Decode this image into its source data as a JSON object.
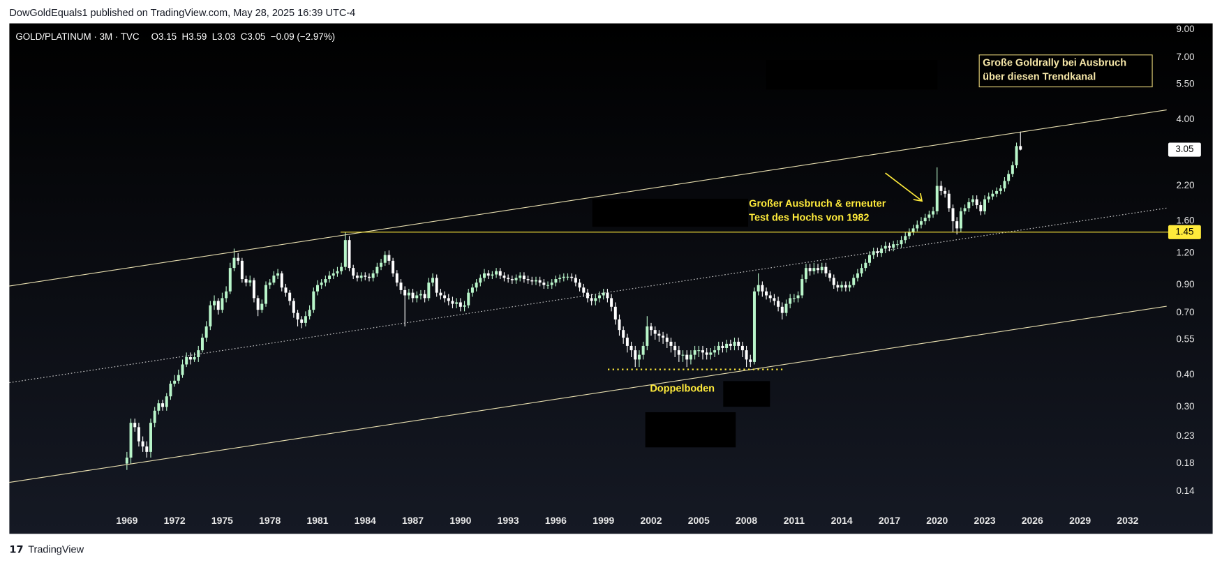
{
  "header": {
    "publisher": "DowGoldEquals1 published on TradingView.com, May 28, 2025 16:39 UTC-4"
  },
  "footer": {
    "brand": "TradingView"
  },
  "chart_data": {
    "type": "candlestick",
    "title": "GOLD/PLATINUM · 3M · TVC",
    "ohlc_text": "O3.15  H3.59  L3.03  C3.05  −0.09 (−2.97%)",
    "log_scale": true,
    "up_color": "#b9f6ca",
    "down_color": "#ffffff",
    "level": 1.45,
    "level_color": "#ffeb3b",
    "annotations": [
      {
        "lines": [
          "Große Goldrally bei Ausbruch",
          "über diesen Trendkanal"
        ]
      },
      {
        "lines": [
          "Großer Ausbruch & erneuter",
          "Test des Hochs von 1982"
        ]
      },
      {
        "lines": [
          "Doppelboden"
        ]
      }
    ],
    "xlim": [
      1961.6,
      2034.6
    ],
    "xticks": [
      1969,
      1972,
      1975,
      1978,
      1981,
      1984,
      1987,
      1990,
      1993,
      1996,
      1999,
      2002,
      2005,
      2008,
      2011,
      2014,
      2017,
      2020,
      2023,
      2026,
      2029,
      2032
    ],
    "ylim": [
      0.118,
      9.52
    ],
    "yticks": [
      {
        "value": 9,
        "label": "9.00"
      },
      {
        "value": 7,
        "label": "7.00"
      },
      {
        "value": 5.5,
        "label": "5.50"
      },
      {
        "value": 4,
        "label": "4.00"
      },
      {
        "value": 2.2,
        "label": "2.20"
      },
      {
        "value": 1.6,
        "label": "1.60"
      },
      {
        "value": 1.2,
        "label": "1.20"
      },
      {
        "value": 0.9,
        "label": "0.90"
      },
      {
        "value": 0.7,
        "label": "0.70"
      },
      0.55,
      {
        "value": 0.4,
        "label": "0.40"
      },
      {
        "value": 0.3,
        "label": "0.30"
      },
      0.23,
      0.18,
      0.14
    ],
    "x": [
      1969,
      1969.25,
      1969.5,
      1969.75,
      1970,
      1970.25,
      1970.5,
      1970.75,
      1971,
      1971.25,
      1971.5,
      1971.75,
      1972,
      1972.25,
      1972.5,
      1972.75,
      1973,
      1973.25,
      1973.5,
      1973.75,
      1974,
      1974.25,
      1974.5,
      1974.75,
      1975,
      1975.25,
      1975.5,
      1975.75,
      1976,
      1976.25,
      1976.5,
      1976.75,
      1977,
      1977.25,
      1977.5,
      1977.75,
      1978,
      1978.25,
      1978.5,
      1978.75,
      1979,
      1979.25,
      1979.5,
      1979.75,
      1980,
      1980.25,
      1980.5,
      1980.75,
      1981,
      1981.25,
      1981.5,
      1981.75,
      1982,
      1982.25,
      1982.5,
      1982.75,
      1983,
      1983.25,
      1983.5,
      1983.75,
      1984,
      1984.25,
      1984.5,
      1984.75,
      1985,
      1985.25,
      1985.5,
      1985.75,
      1986,
      1986.25,
      1986.5,
      1986.75,
      1987,
      1987.25,
      1987.5,
      1987.75,
      1988,
      1988.25,
      1988.5,
      1988.75,
      1989,
      1989.25,
      1989.5,
      1989.75,
      1990,
      1990.25,
      1990.5,
      1990.75,
      1991,
      1991.25,
      1991.5,
      1991.75,
      1992,
      1992.25,
      1992.5,
      1992.75,
      1993,
      1993.25,
      1993.5,
      1993.75,
      1994,
      1994.25,
      1994.5,
      1994.75,
      1995,
      1995.25,
      1995.5,
      1995.75,
      1996,
      1996.25,
      1996.5,
      1996.75,
      1997,
      1997.25,
      1997.5,
      1997.75,
      1998,
      1998.25,
      1998.5,
      1998.75,
      1999,
      1999.25,
      1999.5,
      1999.75,
      2000,
      2000.25,
      2000.5,
      2000.75,
      2001,
      2001.25,
      2001.5,
      2001.75,
      2002,
      2002.25,
      2002.5,
      2002.75,
      2003,
      2003.25,
      2003.5,
      2003.75,
      2004,
      2004.25,
      2004.5,
      2004.75,
      2005,
      2005.25,
      2005.5,
      2005.75,
      2006,
      2006.25,
      2006.5,
      2006.75,
      2007,
      2007.25,
      2007.5,
      2007.75,
      2008,
      2008.25,
      2008.5,
      2008.75,
      2009,
      2009.25,
      2009.5,
      2009.75,
      2010,
      2010.25,
      2010.5,
      2010.75,
      2011,
      2011.25,
      2011.5,
      2011.75,
      2012,
      2012.25,
      2012.5,
      2012.75,
      2013,
      2013.25,
      2013.5,
      2013.75,
      2014,
      2014.25,
      2014.5,
      2014.75,
      2015,
      2015.25,
      2015.5,
      2015.75,
      2016,
      2016.25,
      2016.5,
      2016.75,
      2017,
      2017.25,
      2017.5,
      2017.75,
      2018,
      2018.25,
      2018.5,
      2018.75,
      2019,
      2019.25,
      2019.5,
      2019.75,
      2020,
      2020.25,
      2020.5,
      2020.75,
      2021,
      2021.25,
      2021.5,
      2021.75,
      2022,
      2022.25,
      2022.5,
      2022.75,
      2023,
      2023.25,
      2023.5,
      2023.75,
      2024,
      2024.25,
      2024.5,
      2024.75,
      2025,
      2025.25
    ],
    "open": [
      0.18,
      0.19,
      0.26,
      0.25,
      0.22,
      0.21,
      0.2,
      0.26,
      0.29,
      0.31,
      0.3,
      0.33,
      0.37,
      0.38,
      0.4,
      0.44,
      0.47,
      0.46,
      0.47,
      0.5,
      0.56,
      0.62,
      0.75,
      0.78,
      0.72,
      0.8,
      0.85,
      1.05,
      1.15,
      1.12,
      0.95,
      0.92,
      0.94,
      0.8,
      0.72,
      0.76,
      0.9,
      0.92,
      0.98,
      1.0,
      0.88,
      0.84,
      0.78,
      0.7,
      0.66,
      0.64,
      0.68,
      0.72,
      0.85,
      0.9,
      0.92,
      0.95,
      0.98,
      1.0,
      1.02,
      1.06,
      1.35,
      1.05,
      0.98,
      0.96,
      0.98,
      0.97,
      0.96,
      1.0,
      1.06,
      1.1,
      1.18,
      1.12,
      1.0,
      0.92,
      0.86,
      0.82,
      0.84,
      0.8,
      0.82,
      0.83,
      0.8,
      0.92,
      0.96,
      0.84,
      0.82,
      0.8,
      0.78,
      0.76,
      0.77,
      0.74,
      0.75,
      0.84,
      0.88,
      0.92,
      0.96,
      1.0,
      0.98,
      0.99,
      1.02,
      0.98,
      0.96,
      0.95,
      0.94,
      0.96,
      0.98,
      0.95,
      0.94,
      0.93,
      0.94,
      0.92,
      0.9,
      0.9,
      0.92,
      0.95,
      0.96,
      0.97,
      0.97,
      0.96,
      0.92,
      0.88,
      0.84,
      0.8,
      0.78,
      0.8,
      0.82,
      0.84,
      0.8,
      0.74,
      0.66,
      0.6,
      0.56,
      0.52,
      0.5,
      0.46,
      0.48,
      0.52,
      0.62,
      0.6,
      0.58,
      0.57,
      0.56,
      0.54,
      0.52,
      0.5,
      0.48,
      0.48,
      0.46,
      0.48,
      0.5,
      0.5,
      0.49,
      0.48,
      0.49,
      0.5,
      0.52,
      0.51,
      0.53,
      0.52,
      0.54,
      0.52,
      0.5,
      0.46,
      0.45,
      0.85,
      0.9,
      0.85,
      0.82,
      0.8,
      0.78,
      0.74,
      0.7,
      0.76,
      0.8,
      0.8,
      0.82,
      0.95,
      1.05,
      1.02,
      1.05,
      1.03,
      1.06,
      1.0,
      0.96,
      0.9,
      0.88,
      0.9,
      0.88,
      0.9,
      0.96,
      1.0,
      1.05,
      1.1,
      1.18,
      1.22,
      1.2,
      1.25,
      1.28,
      1.26,
      1.3,
      1.3,
      1.35,
      1.4,
      1.45,
      1.5,
      1.55,
      1.6,
      1.65,
      1.7,
      1.75,
      2.2,
      2.1,
      2.05,
      1.8,
      1.6,
      1.5,
      1.75,
      1.8,
      1.9,
      1.95,
      1.85,
      1.75,
      1.95,
      2.0,
      2.05,
      2.1,
      2.15,
      2.3,
      2.45,
      2.65,
      3.15
    ],
    "high": [
      0.2,
      0.27,
      0.27,
      0.26,
      0.23,
      0.22,
      0.27,
      0.3,
      0.32,
      0.32,
      0.34,
      0.38,
      0.4,
      0.42,
      0.46,
      0.49,
      0.49,
      0.49,
      0.52,
      0.58,
      0.65,
      0.78,
      0.82,
      0.8,
      0.84,
      0.89,
      1.1,
      1.25,
      1.2,
      1.15,
      0.98,
      0.98,
      0.96,
      0.82,
      0.79,
      0.93,
      0.95,
      1.02,
      1.04,
      1.02,
      0.91,
      0.86,
      0.8,
      0.72,
      0.68,
      0.71,
      0.75,
      0.88,
      0.94,
      0.95,
      0.98,
      1.02,
      1.04,
      1.06,
      1.1,
      1.45,
      1.4,
      1.08,
      1.01,
      1.01,
      1.01,
      1.0,
      1.03,
      1.1,
      1.14,
      1.22,
      1.23,
      1.15,
      1.03,
      0.95,
      0.89,
      0.87,
      0.87,
      0.85,
      0.86,
      0.86,
      0.96,
      1.0,
      0.99,
      0.87,
      0.85,
      0.83,
      0.81,
      0.8,
      0.8,
      0.78,
      0.87,
      0.91,
      0.95,
      0.99,
      1.04,
      1.03,
      1.02,
      1.05,
      1.05,
      1.01,
      0.99,
      0.98,
      0.99,
      1.01,
      1.01,
      0.98,
      0.97,
      0.97,
      0.97,
      0.95,
      0.93,
      0.95,
      0.98,
      0.99,
      1.0,
      1.0,
      1.0,
      0.99,
      0.95,
      0.91,
      0.87,
      0.83,
      0.83,
      0.85,
      0.87,
      0.87,
      0.83,
      0.77,
      0.69,
      0.62,
      0.58,
      0.54,
      0.52,
      0.5,
      0.54,
      0.68,
      0.64,
      0.62,
      0.6,
      0.59,
      0.58,
      0.56,
      0.54,
      0.52,
      0.5,
      0.5,
      0.5,
      0.52,
      0.52,
      0.52,
      0.51,
      0.51,
      0.52,
      0.54,
      0.54,
      0.55,
      0.55,
      0.56,
      0.56,
      0.54,
      0.52,
      0.48,
      0.88,
      1.0,
      0.93,
      0.88,
      0.85,
      0.83,
      0.81,
      0.77,
      0.79,
      0.83,
      0.83,
      0.85,
      0.99,
      1.09,
      1.09,
      1.1,
      1.09,
      1.1,
      1.1,
      1.03,
      0.99,
      0.93,
      0.93,
      0.93,
      0.93,
      0.99,
      1.04,
      1.09,
      1.14,
      1.22,
      1.26,
      1.26,
      1.29,
      1.33,
      1.32,
      1.34,
      1.35,
      1.4,
      1.45,
      1.5,
      1.55,
      1.61,
      1.66,
      1.71,
      1.76,
      1.82,
      2.6,
      2.3,
      2.17,
      2.12,
      1.86,
      1.66,
      1.81,
      1.86,
      1.97,
      2.02,
      2.02,
      1.91,
      2.02,
      2.07,
      2.12,
      2.17,
      2.22,
      2.38,
      2.53,
      2.74,
      3.25,
      3.59
    ],
    "low": [
      0.17,
      0.18,
      0.24,
      0.21,
      0.2,
      0.19,
      0.19,
      0.25,
      0.28,
      0.29,
      0.29,
      0.32,
      0.36,
      0.37,
      0.39,
      0.43,
      0.44,
      0.45,
      0.45,
      0.49,
      0.54,
      0.6,
      0.72,
      0.69,
      0.7,
      0.77,
      0.83,
      1.02,
      1.08,
      0.92,
      0.89,
      0.89,
      0.77,
      0.68,
      0.7,
      0.74,
      0.87,
      0.9,
      0.95,
      0.85,
      0.81,
      0.75,
      0.67,
      0.62,
      0.61,
      0.62,
      0.66,
      0.7,
      0.82,
      0.87,
      0.89,
      0.92,
      0.95,
      0.97,
      0.99,
      1.03,
      1.02,
      0.95,
      0.93,
      0.93,
      0.94,
      0.93,
      0.93,
      0.97,
      1.03,
      1.07,
      1.08,
      0.97,
      0.89,
      0.83,
      0.62,
      0.79,
      0.77,
      0.77,
      0.79,
      0.77,
      0.78,
      0.89,
      0.81,
      0.79,
      0.77,
      0.75,
      0.73,
      0.73,
      0.71,
      0.71,
      0.73,
      0.81,
      0.85,
      0.89,
      0.93,
      0.95,
      0.95,
      0.96,
      0.95,
      0.93,
      0.92,
      0.91,
      0.91,
      0.93,
      0.92,
      0.91,
      0.9,
      0.9,
      0.89,
      0.87,
      0.87,
      0.87,
      0.89,
      0.92,
      0.93,
      0.94,
      0.93,
      0.89,
      0.85,
      0.81,
      0.77,
      0.75,
      0.75,
      0.77,
      0.79,
      0.77,
      0.71,
      0.63,
      0.57,
      0.53,
      0.49,
      0.47,
      0.43,
      0.43,
      0.46,
      0.5,
      0.57,
      0.55,
      0.54,
      0.53,
      0.51,
      0.49,
      0.47,
      0.45,
      0.45,
      0.43,
      0.44,
      0.46,
      0.47,
      0.46,
      0.46,
      0.46,
      0.47,
      0.48,
      0.49,
      0.49,
      0.5,
      0.5,
      0.5,
      0.47,
      0.43,
      0.43,
      0.44,
      0.82,
      0.81,
      0.79,
      0.77,
      0.75,
      0.71,
      0.66,
      0.68,
      0.73,
      0.77,
      0.77,
      0.8,
      0.92,
      0.98,
      0.99,
      1.0,
      1.0,
      0.97,
      0.93,
      0.87,
      0.85,
      0.85,
      0.85,
      0.85,
      0.88,
      0.93,
      0.97,
      1.02,
      1.07,
      1.14,
      1.16,
      1.16,
      1.2,
      1.22,
      1.22,
      1.26,
      1.26,
      1.31,
      1.36,
      1.41,
      1.46,
      1.5,
      1.55,
      1.6,
      1.65,
      1.7,
      2.02,
      1.98,
      1.74,
      1.45,
      1.42,
      1.45,
      1.7,
      1.74,
      1.84,
      1.79,
      1.69,
      1.7,
      1.89,
      1.94,
      1.99,
      2.04,
      2.09,
      2.23,
      2.38,
      2.58,
      3.03
    ],
    "close": [
      0.19,
      0.26,
      0.25,
      0.22,
      0.21,
      0.2,
      0.26,
      0.29,
      0.31,
      0.3,
      0.33,
      0.37,
      0.38,
      0.4,
      0.44,
      0.47,
      0.46,
      0.47,
      0.5,
      0.56,
      0.62,
      0.75,
      0.78,
      0.72,
      0.8,
      0.85,
      1.05,
      1.15,
      1.12,
      0.95,
      0.92,
      0.94,
      0.8,
      0.72,
      0.76,
      0.9,
      0.92,
      0.98,
      1.0,
      0.88,
      0.84,
      0.78,
      0.7,
      0.66,
      0.64,
      0.68,
      0.72,
      0.85,
      0.9,
      0.92,
      0.95,
      0.98,
      1.0,
      1.02,
      1.06,
      1.35,
      1.05,
      0.98,
      0.96,
      0.98,
      0.97,
      0.96,
      1.0,
      1.06,
      1.1,
      1.18,
      1.12,
      1.0,
      0.92,
      0.86,
      0.82,
      0.84,
      0.8,
      0.82,
      0.83,
      0.8,
      0.92,
      0.96,
      0.84,
      0.82,
      0.8,
      0.78,
      0.76,
      0.77,
      0.74,
      0.75,
      0.84,
      0.88,
      0.92,
      0.96,
      1.0,
      0.98,
      0.99,
      1.02,
      0.98,
      0.96,
      0.95,
      0.94,
      0.96,
      0.98,
      0.95,
      0.94,
      0.93,
      0.94,
      0.92,
      0.9,
      0.9,
      0.92,
      0.95,
      0.96,
      0.97,
      0.97,
      0.96,
      0.92,
      0.88,
      0.84,
      0.8,
      0.78,
      0.8,
      0.82,
      0.84,
      0.8,
      0.74,
      0.66,
      0.6,
      0.56,
      0.52,
      0.5,
      0.46,
      0.48,
      0.52,
      0.62,
      0.6,
      0.58,
      0.57,
      0.56,
      0.54,
      0.52,
      0.5,
      0.48,
      0.48,
      0.46,
      0.48,
      0.5,
      0.5,
      0.49,
      0.48,
      0.49,
      0.5,
      0.52,
      0.51,
      0.53,
      0.52,
      0.54,
      0.52,
      0.5,
      0.46,
      0.45,
      0.85,
      0.9,
      0.85,
      0.82,
      0.8,
      0.78,
      0.74,
      0.7,
      0.76,
      0.8,
      0.8,
      0.82,
      0.95,
      1.05,
      1.02,
      1.05,
      1.03,
      1.06,
      1.0,
      0.96,
      0.9,
      0.88,
      0.9,
      0.88,
      0.9,
      0.96,
      1.0,
      1.05,
      1.1,
      1.18,
      1.22,
      1.2,
      1.25,
      1.28,
      1.26,
      1.3,
      1.3,
      1.35,
      1.4,
      1.45,
      1.5,
      1.55,
      1.6,
      1.65,
      1.7,
      1.75,
      2.2,
      2.1,
      2.05,
      1.8,
      1.6,
      1.5,
      1.75,
      1.8,
      1.9,
      1.95,
      1.85,
      1.75,
      1.95,
      2.0,
      2.05,
      2.1,
      2.15,
      2.3,
      2.45,
      2.65,
      3.15,
      3.05
    ]
  }
}
